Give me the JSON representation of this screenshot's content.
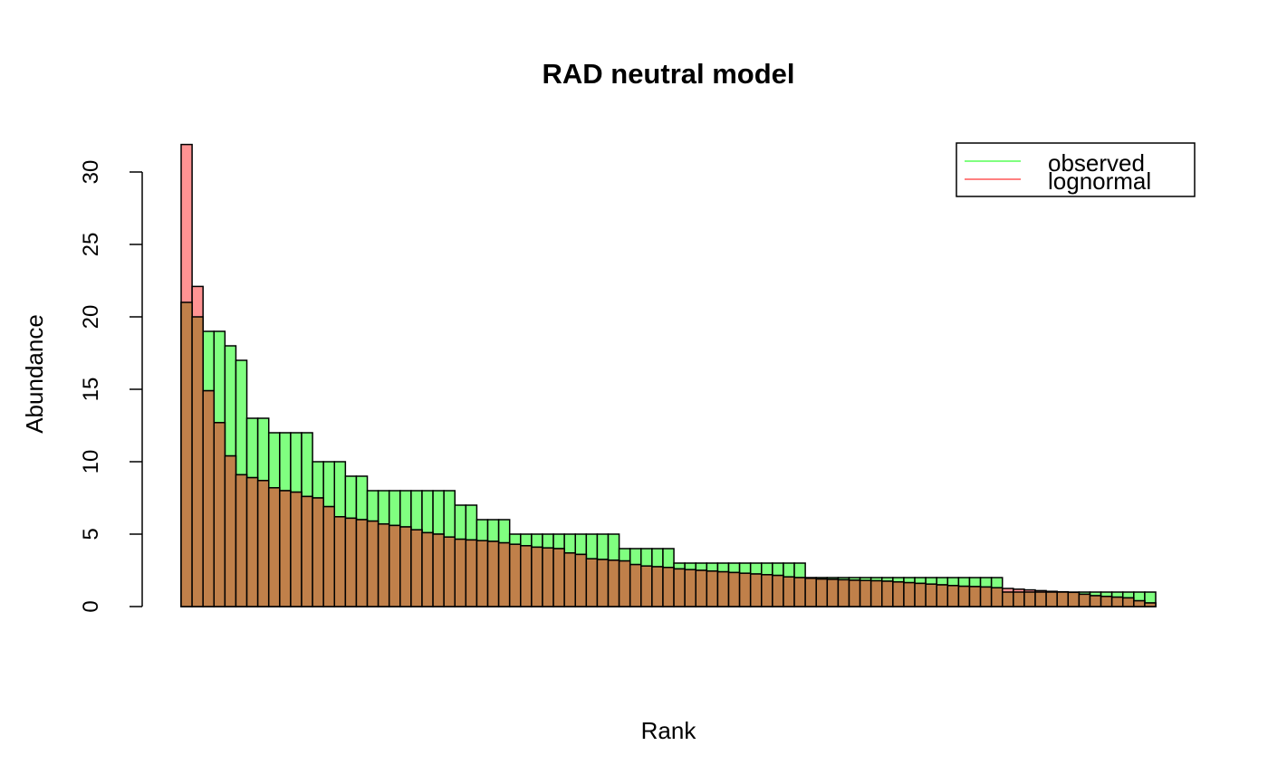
{
  "chart_data": {
    "type": "bar",
    "title": "RAD neutral model",
    "xlabel": "Rank",
    "ylabel": "Abundance",
    "ylim": [
      0,
      32
    ],
    "yticks": [
      0,
      5,
      10,
      15,
      20,
      25,
      30
    ],
    "legend": {
      "placement": "top-right"
    },
    "series": [
      {
        "name": "observed",
        "color": "#80FF80",
        "values": [
          21,
          20,
          19,
          19,
          18,
          17,
          13,
          13,
          12,
          12,
          12,
          12,
          10,
          10,
          10,
          9,
          9,
          8,
          8,
          8,
          8,
          8,
          8,
          8,
          8,
          7,
          7,
          6,
          6,
          6,
          5,
          5,
          5,
          5,
          5,
          5,
          5,
          5,
          5,
          5,
          4,
          4,
          4,
          4,
          4,
          3,
          3,
          3,
          3,
          3,
          3,
          3,
          3,
          3,
          3,
          3,
          3,
          2,
          2,
          2,
          2,
          2,
          2,
          2,
          2,
          2,
          2,
          2,
          2,
          2,
          2,
          2,
          2,
          2,
          2,
          1,
          1,
          1,
          1,
          1,
          1,
          1,
          1,
          1,
          1,
          1,
          1,
          1,
          1
        ]
      },
      {
        "name": "lognormal",
        "color": "#FF8080",
        "values": [
          31.9,
          22.1,
          14.9,
          12.7,
          10.4,
          9.1,
          8.9,
          8.7,
          8.2,
          8.0,
          7.9,
          7.6,
          7.5,
          6.9,
          6.2,
          6.1,
          6.0,
          5.9,
          5.7,
          5.6,
          5.5,
          5.3,
          5.1,
          5.0,
          4.8,
          4.65,
          4.6,
          4.55,
          4.5,
          4.4,
          4.3,
          4.2,
          4.1,
          4.05,
          4.0,
          3.7,
          3.6,
          3.3,
          3.25,
          3.2,
          3.15,
          2.9,
          2.8,
          2.75,
          2.7,
          2.6,
          2.55,
          2.5,
          2.45,
          2.4,
          2.35,
          2.3,
          2.25,
          2.2,
          2.15,
          2.05,
          2.0,
          1.95,
          1.9,
          1.88,
          1.85,
          1.82,
          1.8,
          1.78,
          1.75,
          1.7,
          1.65,
          1.6,
          1.55,
          1.5,
          1.45,
          1.4,
          1.38,
          1.35,
          1.3,
          1.25,
          1.2,
          1.15,
          1.1,
          1.05,
          1.02,
          0.98,
          0.85,
          0.75,
          0.7,
          0.65,
          0.6,
          0.4,
          0.25
        ]
      }
    ]
  }
}
